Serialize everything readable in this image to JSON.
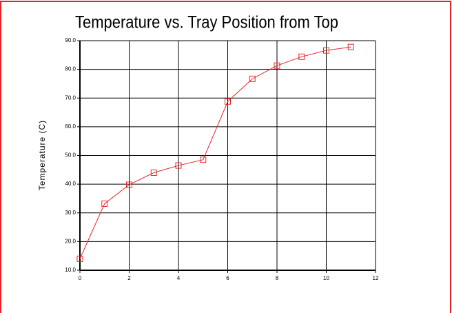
{
  "chart_data": {
    "type": "line",
    "title": "Temperature vs. Tray Position from Top",
    "y_label": "Temperature (C)",
    "x": [
      0,
      1,
      2,
      3,
      4,
      5,
      6,
      7,
      8,
      9,
      10,
      11
    ],
    "series": [
      {
        "color": "#e8242a",
        "values": [
          14.0,
          33.2,
          39.8,
          44.0,
          46.5,
          48.5,
          68.8,
          76.7,
          81.3,
          84.4,
          86.6,
          87.8
        ]
      }
    ],
    "xlim": [
      0,
      12
    ],
    "xticks": [
      0,
      2,
      4,
      6,
      8,
      10,
      12
    ],
    "ylim": [
      10,
      90
    ],
    "yticks": [
      {
        "value": 10,
        "label": "10.0"
      },
      {
        "value": 20,
        "label": "20.0"
      },
      {
        "value": 30,
        "label": "30.0"
      },
      {
        "value": 40,
        "label": "40.0"
      },
      {
        "value": 50,
        "label": "50.0"
      },
      {
        "value": 60,
        "label": "60.0"
      },
      {
        "value": 70,
        "label": "70.0"
      },
      {
        "value": 80,
        "label": "80.0"
      },
      {
        "value": 90,
        "label": "90.0"
      }
    ],
    "grid": true
  }
}
